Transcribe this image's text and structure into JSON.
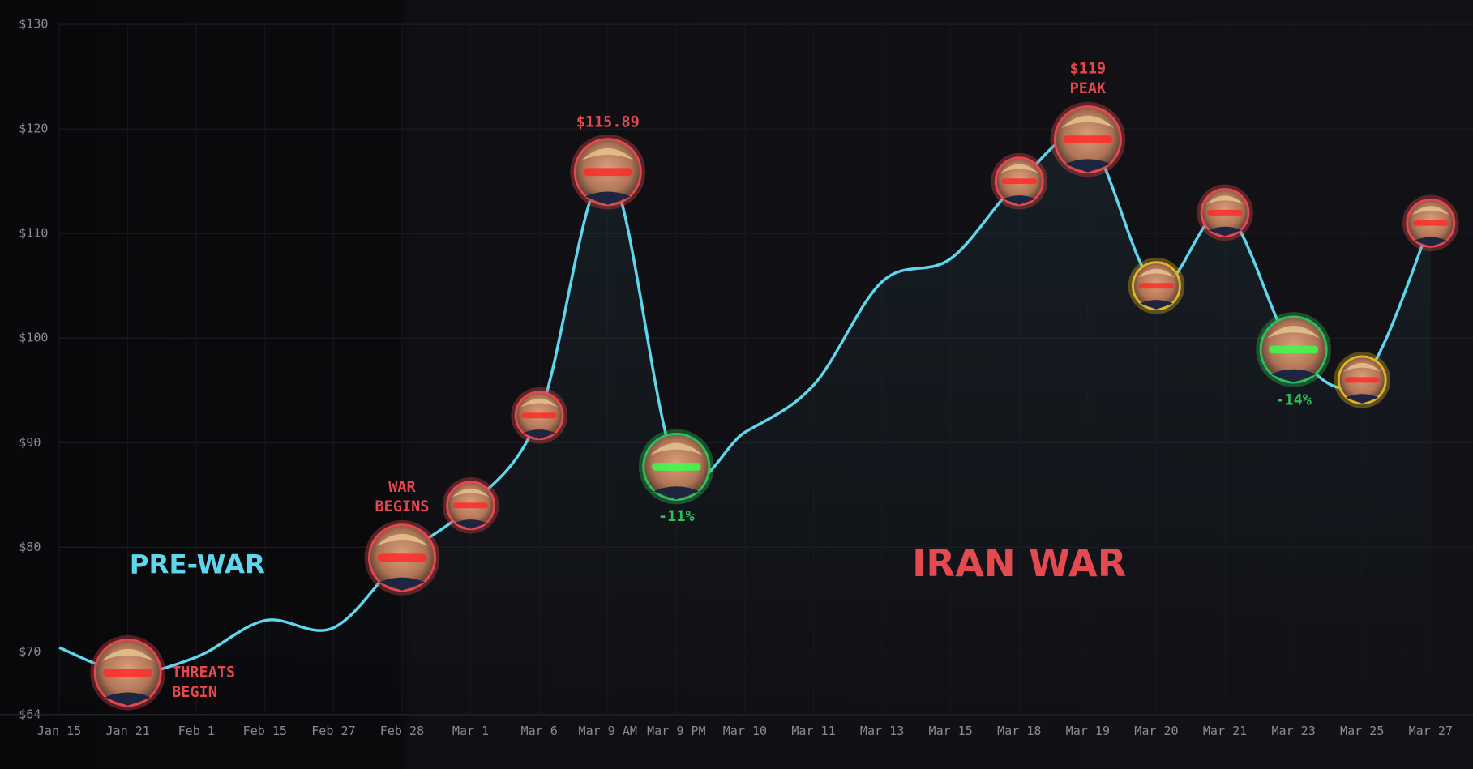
{
  "chart_data": {
    "type": "line",
    "categories": [
      "Jan 15",
      "Jan 21",
      "Feb 1",
      "Feb 15",
      "Feb 27",
      "Feb 28",
      "Mar 1",
      "Mar 6",
      "Mar 9 AM",
      "Mar 9 PM",
      "Mar 10",
      "Mar 11",
      "Mar 13",
      "Mar 15",
      "Mar 18",
      "Mar 19",
      "Mar 20",
      "Mar 21",
      "Mar 23",
      "Mar 25",
      "Mar 27"
    ],
    "values": [
      70.4,
      68,
      69.5,
      73,
      72.3,
      79,
      84,
      92.6,
      115.89,
      87.7,
      91,
      95.5,
      105.4,
      107.6,
      115,
      119,
      105,
      112,
      98.9,
      96,
      111
    ],
    "color": "#5fd6ec",
    "marker_colors": [
      null,
      "#e5484d",
      null,
      null,
      null,
      "#e5484d",
      "#e5484d",
      "#e5484d",
      "#e5484d",
      "#2fbf5a",
      null,
      null,
      null,
      null,
      "#e5484d",
      "#e5484d",
      "#e0b424",
      "#e5484d",
      "#2fbf5a",
      "#e0b424",
      "#e5484d"
    ],
    "ylim": [
      64,
      130
    ],
    "yticks": [
      {
        "value": 64,
        "label": "$64"
      },
      {
        "value": 70,
        "label": "$70"
      },
      {
        "value": 80,
        "label": "$80"
      },
      {
        "value": 90,
        "label": "$90"
      },
      {
        "value": 100,
        "label": "$100"
      },
      {
        "value": 110,
        "label": "$110"
      },
      {
        "value": 120,
        "label": "$120"
      },
      {
        "value": 130,
        "label": "$130"
      }
    ],
    "grid": true,
    "annotations": [
      {
        "at": "Jan 21",
        "text": [
          "THREATS",
          "BEGIN"
        ],
        "color": "#e5484d"
      },
      {
        "at": "Feb 28",
        "text": [
          "WAR",
          "BEGINS"
        ],
        "color": "#e5484d"
      },
      {
        "at": "Mar 9 AM",
        "text": [
          "$115.89"
        ],
        "color": "#e5484d"
      },
      {
        "at": "Mar 9 PM",
        "text": [
          "-11%"
        ],
        "color": "#2fbf5a"
      },
      {
        "at": "Mar 19",
        "text": [
          "$119",
          "PEAK"
        ],
        "color": "#e5484d"
      },
      {
        "at": "Mar 23",
        "text": [
          "-14%"
        ],
        "color": "#2fbf5a"
      }
    ],
    "regions": [
      {
        "label": "PRE-WAR",
        "color": "#5fd6ec"
      },
      {
        "label": "IRAN WAR",
        "color": "#e5484d"
      }
    ]
  }
}
